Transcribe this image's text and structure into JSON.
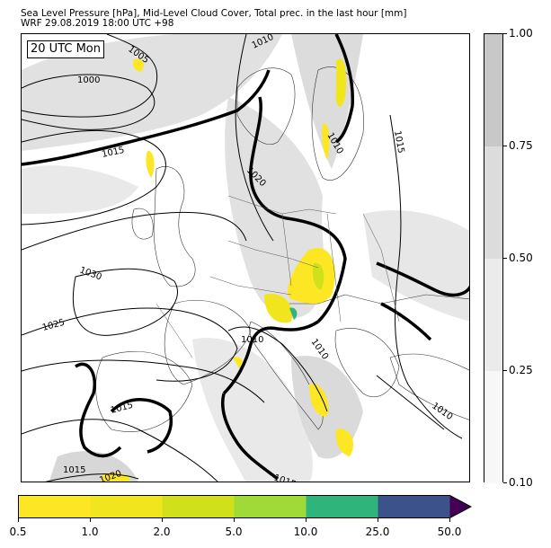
{
  "title": {
    "line1": "Sea Level Pressure [hPa], Mid-Level Cloud Cover, Total prec. in the last hour [mm]",
    "line2": "WRF 29.08.2019 18:00 UTC +98"
  },
  "map": {
    "time_label": "20 UTC Mon",
    "isobar_labels": [
      "1005",
      "1010",
      "1000",
      "1015",
      "1010",
      "1015",
      "1020",
      "1030",
      "1025",
      "1010",
      "1010",
      "1015",
      "1010",
      "1015",
      "1020",
      "1015"
    ]
  },
  "cloud_colorbar": {
    "ticks": [
      "1.00",
      "0.75",
      "0.50",
      "0.25",
      "0.10"
    ],
    "colors": [
      "#c8c8c8",
      "#dcdcdc",
      "#ebebeb",
      "#f7f7f7"
    ]
  },
  "precip_colorbar": {
    "ticks": [
      "0.5",
      "1.0",
      "2.0",
      "5.0",
      "10.0",
      "25.0",
      "50.0"
    ],
    "colors": [
      "#fde725",
      "#f1e51d",
      "#d0e11c",
      "#a0da39",
      "#2fb47c",
      "#3b528b",
      "#440154"
    ]
  }
}
